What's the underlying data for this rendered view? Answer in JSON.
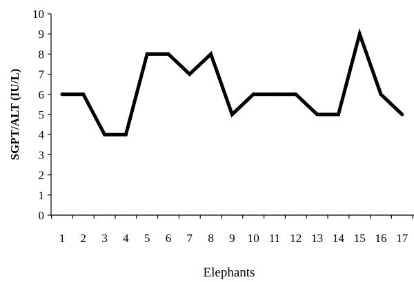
{
  "chart_data": {
    "type": "line",
    "title": "",
    "xlabel": "Elephants",
    "ylabel": "SGPT/ALT  (IU/L)",
    "x": [
      "1",
      "2",
      "3",
      "4",
      "5",
      "6",
      "7",
      "8",
      "9",
      "10",
      "11",
      "12",
      "13",
      "14",
      "15",
      "16",
      "17"
    ],
    "series": [
      {
        "values": [
          6,
          6,
          4,
          4,
          8,
          8,
          7,
          8,
          5,
          6,
          6,
          6,
          5,
          5,
          9,
          6,
          5
        ]
      }
    ],
    "ylim": [
      0,
      10
    ],
    "yticks": [
      "0",
      "1",
      "2",
      "3",
      "4",
      "5",
      "6",
      "7",
      "8",
      "9",
      "10"
    ],
    "grid": false,
    "legend": "none",
    "line_color": "#000000"
  }
}
